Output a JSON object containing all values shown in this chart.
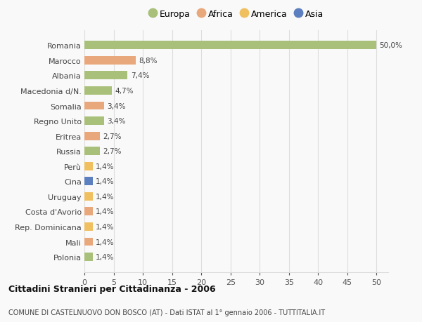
{
  "categories": [
    "Polonia",
    "Mali",
    "Rep. Dominicana",
    "Costa d'Avorio",
    "Uruguay",
    "Cina",
    "Perù",
    "Russia",
    "Eritrea",
    "Regno Unito",
    "Somalia",
    "Macedonia d/N.",
    "Albania",
    "Marocco",
    "Romania"
  ],
  "values": [
    1.4,
    1.4,
    1.4,
    1.4,
    1.4,
    1.4,
    1.4,
    2.7,
    2.7,
    3.4,
    3.4,
    4.7,
    7.4,
    8.8,
    50.0
  ],
  "labels": [
    "1,4%",
    "1,4%",
    "1,4%",
    "1,4%",
    "1,4%",
    "1,4%",
    "1,4%",
    "2,7%",
    "2,7%",
    "3,4%",
    "3,4%",
    "4,7%",
    "7,4%",
    "8,8%",
    "50,0%"
  ],
  "colors": [
    "#a8c07a",
    "#e8a87c",
    "#f0c060",
    "#e8a87c",
    "#f0c060",
    "#5b7fbf",
    "#f0c060",
    "#a8c07a",
    "#e8a87c",
    "#a8c07a",
    "#e8a87c",
    "#a8c07a",
    "#a8c07a",
    "#e8a87c",
    "#a8c07a"
  ],
  "legend_labels": [
    "Europa",
    "Africa",
    "America",
    "Asia"
  ],
  "legend_colors": [
    "#a8c07a",
    "#e8a87c",
    "#f0c060",
    "#5b7fbf"
  ],
  "title": "Cittadini Stranieri per Cittadinanza - 2006",
  "subtitle": "COMUNE DI CASTELNUOVO DON BOSCO (AT) - Dati ISTAT al 1° gennaio 2006 - TUTTITALIA.IT",
  "xlim": [
    0,
    52
  ],
  "xticks": [
    0,
    5,
    10,
    15,
    20,
    25,
    30,
    35,
    40,
    45,
    50
  ],
  "background_color": "#f9f9f9",
  "grid_color": "#dddddd",
  "bar_height": 0.55
}
